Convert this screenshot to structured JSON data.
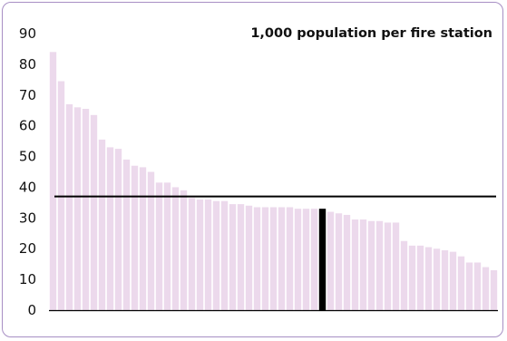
{
  "chart_data": {
    "type": "bar",
    "title": "1,000 population per fire station",
    "xlabel": "",
    "ylabel": "",
    "ylim": [
      0,
      90
    ],
    "yticks": [
      0,
      10,
      20,
      30,
      40,
      50,
      60,
      70,
      80,
      90
    ],
    "grid": false,
    "legend": "none",
    "reference_line": 37,
    "highlight_index": 33,
    "colors": {
      "bar": "#ecd9ec",
      "highlight": "#000000",
      "reference": "#000000",
      "axis": "#000000",
      "frame": "#a78fc4"
    },
    "values": [
      84,
      74.5,
      67,
      66,
      65.5,
      63.5,
      55.5,
      53,
      52.5,
      49,
      47,
      46.5,
      45,
      41.5,
      41.5,
      40,
      39,
      36.5,
      36,
      36,
      35.5,
      35.5,
      34.5,
      34.5,
      34,
      33.5,
      33.5,
      33.5,
      33.5,
      33.5,
      33,
      33,
      33,
      33,
      32,
      31.5,
      31,
      29.5,
      29.5,
      29,
      29,
      28.5,
      28.5,
      22.5,
      21,
      21,
      20.5,
      20,
      19.5,
      19,
      17.5,
      15.5,
      15.5,
      14,
      13
    ]
  }
}
